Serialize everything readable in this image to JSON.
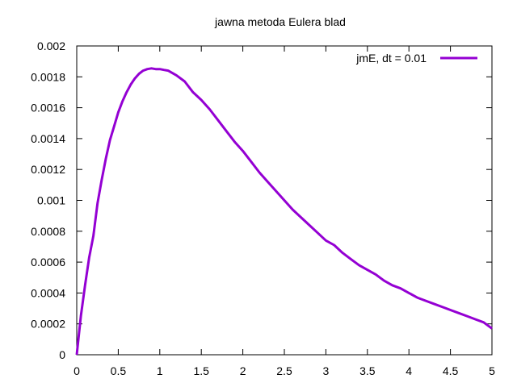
{
  "chart_data": {
    "type": "line",
    "title": "jawna metoda Eulera blad",
    "xlabel": "",
    "ylabel": "",
    "xlim": [
      0,
      5
    ],
    "ylim": [
      0,
      0.002
    ],
    "grid": false,
    "legend_position": "top-right",
    "x_ticks": [
      "0",
      "0.5",
      "1",
      "1.5",
      "2",
      "2.5",
      "3",
      "3.5",
      "4",
      "4.5",
      "5"
    ],
    "y_ticks": [
      "0",
      "0.0002",
      "0.0004",
      "0.0006",
      "0.0008",
      "0.001",
      "0.0012",
      "0.0014",
      "0.0016",
      "0.0018",
      "0.002"
    ],
    "series": [
      {
        "name": "jmE, dt = 0.01",
        "color": "#9400d3",
        "x": [
          0,
          0.05,
          0.1,
          0.15,
          0.2,
          0.25,
          0.3,
          0.35,
          0.4,
          0.45,
          0.5,
          0.55,
          0.6,
          0.65,
          0.7,
          0.75,
          0.8,
          0.85,
          0.9,
          0.95,
          1.0,
          1.05,
          1.1,
          1.2,
          1.3,
          1.4,
          1.5,
          1.6,
          1.7,
          1.8,
          1.9,
          2.0,
          2.1,
          2.2,
          2.3,
          2.4,
          2.5,
          2.6,
          2.7,
          2.8,
          2.9,
          3.0,
          3.1,
          3.2,
          3.3,
          3.4,
          3.5,
          3.6,
          3.7,
          3.8,
          3.9,
          4.0,
          4.1,
          4.2,
          4.3,
          4.4,
          4.5,
          4.6,
          4.7,
          4.8,
          4.9,
          5.0
        ],
        "y": [
          0,
          0.00025,
          0.00045,
          0.00063,
          0.00077,
          0.00098,
          0.00113,
          0.00127,
          0.00139,
          0.00148,
          0.00157,
          0.00164,
          0.0017,
          0.00175,
          0.00179,
          0.00182,
          0.00184,
          0.00185,
          0.001855,
          0.00185,
          0.00185,
          0.001845,
          0.00184,
          0.00181,
          0.00177,
          0.0017,
          0.00165,
          0.00159,
          0.00152,
          0.00145,
          0.00138,
          0.00132,
          0.00125,
          0.00118,
          0.00112,
          0.00106,
          0.001,
          0.00094,
          0.00089,
          0.00084,
          0.00079,
          0.00074,
          0.00071,
          0.00066,
          0.00062,
          0.00058,
          0.00055,
          0.00052,
          0.00048,
          0.00045,
          0.00043,
          0.0004,
          0.00037,
          0.00035,
          0.00033,
          0.00031,
          0.00029,
          0.00027,
          0.00025,
          0.00023,
          0.00021,
          0.00017
        ]
      }
    ]
  }
}
